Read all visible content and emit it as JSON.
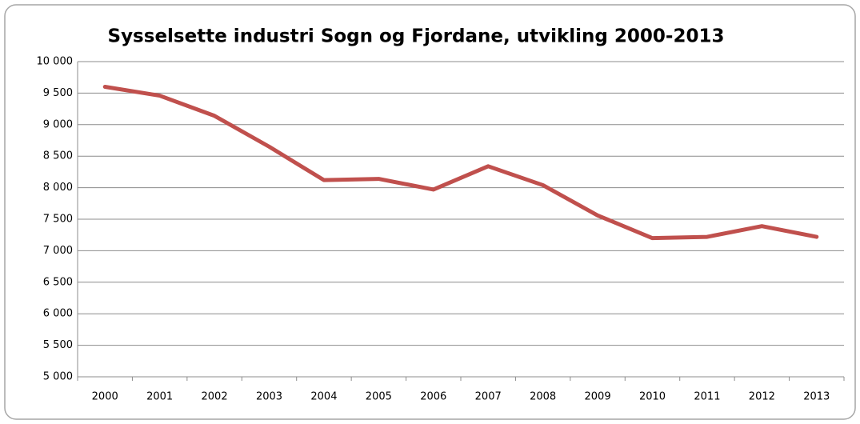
{
  "chart_data": {
    "type": "line",
    "title": "Sysselsette industri Sogn og Fjordane, utvikling 2000-2013",
    "categories": [
      "2000",
      "2001",
      "2002",
      "2003",
      "2004",
      "2005",
      "2006",
      "2007",
      "2008",
      "2009",
      "2010",
      "2011",
      "2012",
      "2013"
    ],
    "series": [
      {
        "color": "#c0504d",
        "values": [
          9600,
          9460,
          9140,
          8650,
          8120,
          8140,
          7970,
          8340,
          8040,
          7560,
          7200,
          7220,
          7390,
          7220
        ]
      }
    ],
    "ylim": [
      5000,
      10000
    ],
    "yticks": [
      {
        "value": 5000,
        "label": "5 000"
      },
      {
        "value": 5500,
        "label": "5 500"
      },
      {
        "value": 6000,
        "label": "6 000"
      },
      {
        "value": 6500,
        "label": "6 500"
      },
      {
        "value": 7000,
        "label": "7 000"
      },
      {
        "value": 7500,
        "label": "7 500"
      },
      {
        "value": 8000,
        "label": "8 000"
      },
      {
        "value": 8500,
        "label": "8 500"
      },
      {
        "value": 9000,
        "label": "9 000"
      },
      {
        "value": 9500,
        "label": "9 500"
      },
      {
        "value": 10000,
        "label": "10 000"
      }
    ],
    "grid": true
  }
}
